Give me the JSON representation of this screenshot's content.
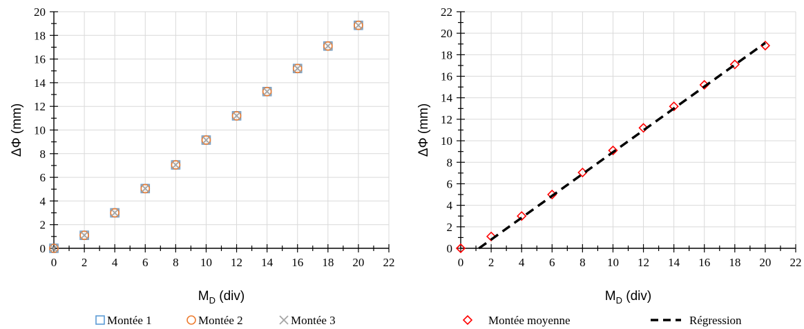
{
  "chart_data": [
    {
      "type": "scatter",
      "ylabel": "ΔΦ (mm)",
      "xlabel_main": "M",
      "xlabel_sub": "D",
      "xlabel_unit": " (div)",
      "xlim": [
        0,
        22
      ],
      "ylim": [
        0,
        20
      ],
      "x_ticks": [
        "0",
        "2",
        "4",
        "6",
        "8",
        "10",
        "12",
        "14",
        "16",
        "18",
        "20",
        "22"
      ],
      "y_ticks": [
        "0",
        "2",
        "4",
        "6",
        "8",
        "10",
        "12",
        "14",
        "16",
        "18",
        "20"
      ],
      "grid": true,
      "legend_position": "bottom",
      "series": [
        {
          "name": "Montée 1",
          "marker": "square",
          "color": "#5B9BD5",
          "x": [
            0,
            2,
            4,
            6,
            8,
            10,
            12,
            14,
            16,
            18,
            20
          ],
          "y": [
            0,
            1.1,
            3.0,
            5.05,
            7.05,
            9.15,
            11.2,
            13.25,
            15.2,
            17.1,
            18.85
          ]
        },
        {
          "name": "Montée 2",
          "marker": "circle",
          "color": "#ED7D31",
          "x": [
            0,
            2,
            4,
            6,
            8,
            10,
            12,
            14,
            16,
            18,
            20
          ],
          "y": [
            0,
            1.1,
            3.0,
            5.05,
            7.05,
            9.15,
            11.2,
            13.25,
            15.2,
            17.1,
            18.85
          ]
        },
        {
          "name": "Montée 3",
          "marker": "x",
          "color": "#A5A5A5",
          "x": [
            0,
            2,
            4,
            6,
            8,
            10,
            12,
            14,
            16,
            18,
            20
          ],
          "y": [
            0,
            1.1,
            3.0,
            5.05,
            7.05,
            9.15,
            11.2,
            13.25,
            15.2,
            17.1,
            18.85
          ]
        }
      ]
    },
    {
      "type": "scatter",
      "ylabel": "ΔΦ (mm)",
      "xlabel_main": "M",
      "xlabel_sub": "D",
      "xlabel_unit": " (div)",
      "xlim": [
        0,
        22
      ],
      "ylim": [
        0,
        22
      ],
      "x_ticks": [
        "0",
        "2",
        "4",
        "6",
        "8",
        "10",
        "12",
        "14",
        "16",
        "18",
        "20",
        "22"
      ],
      "y_ticks": [
        "0",
        "2",
        "4",
        "6",
        "8",
        "10",
        "12",
        "14",
        "16",
        "18",
        "20",
        "22"
      ],
      "grid": true,
      "legend_position": "bottom",
      "series": [
        {
          "name": "Montée moyenne",
          "marker": "diamond",
          "color": "#FF0000",
          "x": [
            0,
            2,
            4,
            6,
            8,
            10,
            12,
            14,
            16,
            18,
            20
          ],
          "y": [
            0,
            1.1,
            3.0,
            5.0,
            7.05,
            9.1,
            11.2,
            13.2,
            15.2,
            17.1,
            18.85
          ]
        },
        {
          "name": "Régression",
          "line": "dashed",
          "color": "#000000",
          "x": [
            1.2,
            20
          ],
          "y": [
            0,
            19.1
          ]
        }
      ]
    }
  ]
}
